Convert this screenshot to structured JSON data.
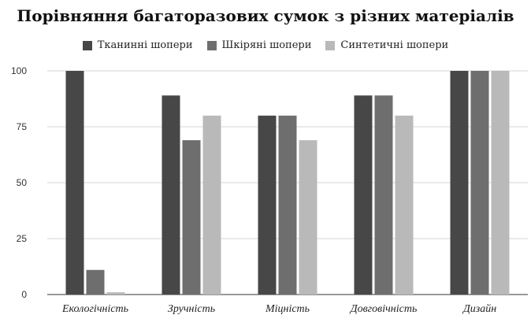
{
  "chart_data": {
    "type": "bar",
    "title": "Порівняння багаторазових сумок з різних матеріалів",
    "categories": [
      "Екологічність",
      "Зручність",
      "Міцність",
      "Довговічність",
      "Дизайн"
    ],
    "series": [
      {
        "name": "Тканинні шопери",
        "color": "#474747",
        "values": [
          100,
          89,
          80,
          89,
          100
        ]
      },
      {
        "name": "Шкіряні шопери",
        "color": "#6e6e6e",
        "values": [
          11,
          69,
          80,
          89,
          100
        ]
      },
      {
        "name": "Синтетичні шопери",
        "color": "#b9b9b9",
        "values": [
          1,
          80,
          69,
          80,
          100
        ]
      }
    ],
    "ylim": [
      0,
      100
    ],
    "yticks": [
      0,
      25,
      50,
      75,
      100
    ],
    "grid": true,
    "legend_position": "top"
  }
}
